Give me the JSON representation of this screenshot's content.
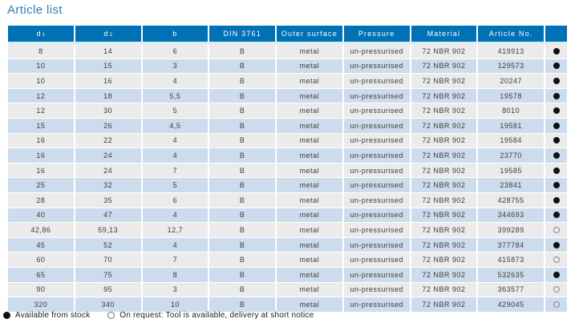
{
  "title": "Article list",
  "colors": {
    "title_text": "#2b7fb8",
    "header_bg": "#0071b5",
    "header_text": "#ffffff",
    "header_underline": "#d8f0f3",
    "row_odd_bg": "#ebebeb",
    "row_even_bg": "#ccdcec",
    "body_text": "#3c3c3c",
    "dot_filled": "#111111",
    "dot_open_border": "#8a8a8a"
  },
  "table": {
    "headers": [
      {
        "text": "d",
        "sub": "1"
      },
      {
        "text": "d",
        "sub": "2"
      },
      {
        "text": "b",
        "sub": ""
      },
      {
        "text": "DIN 3761",
        "sub": ""
      },
      {
        "text": "Outer surface",
        "sub": ""
      },
      {
        "text": "Pressure",
        "sub": ""
      },
      {
        "text": "Material",
        "sub": ""
      },
      {
        "text": "Article No.",
        "sub": ""
      },
      {
        "text": "",
        "sub": ""
      }
    ],
    "rows": [
      {
        "d1": "8",
        "d2": "14",
        "b": "6",
        "din": "B",
        "outer": "metal",
        "pressure": "un-pressurised",
        "material": "72 NBR 902",
        "article": "419913",
        "avail": "stock"
      },
      {
        "d1": "10",
        "d2": "15",
        "b": "3",
        "din": "B",
        "outer": "metal",
        "pressure": "un-pressurised",
        "material": "72 NBR 902",
        "article": "129573",
        "avail": "stock"
      },
      {
        "d1": "10",
        "d2": "16",
        "b": "4",
        "din": "B",
        "outer": "metal",
        "pressure": "un-pressurised",
        "material": "72 NBR 902",
        "article": "20247",
        "avail": "stock"
      },
      {
        "d1": "12",
        "d2": "18",
        "b": "5,5",
        "din": "B",
        "outer": "metal",
        "pressure": "un-pressurised",
        "material": "72 NBR 902",
        "article": "19578",
        "avail": "stock"
      },
      {
        "d1": "12",
        "d2": "30",
        "b": "5",
        "din": "B",
        "outer": "metal",
        "pressure": "un-pressurised",
        "material": "72 NBR 902",
        "article": "8010",
        "avail": "stock"
      },
      {
        "d1": "15",
        "d2": "26",
        "b": "4,5",
        "din": "B",
        "outer": "metal",
        "pressure": "un-pressurised",
        "material": "72 NBR 902",
        "article": "19581",
        "avail": "stock"
      },
      {
        "d1": "16",
        "d2": "22",
        "b": "4",
        "din": "B",
        "outer": "metal",
        "pressure": "un-pressurised",
        "material": "72 NBR 902",
        "article": "19584",
        "avail": "stock"
      },
      {
        "d1": "16",
        "d2": "24",
        "b": "4",
        "din": "B",
        "outer": "metal",
        "pressure": "un-pressurised",
        "material": "72 NBR 902",
        "article": "23770",
        "avail": "stock"
      },
      {
        "d1": "16",
        "d2": "24",
        "b": "7",
        "din": "B",
        "outer": "metal",
        "pressure": "un-pressurised",
        "material": "72 NBR 902",
        "article": "19585",
        "avail": "stock"
      },
      {
        "d1": "25",
        "d2": "32",
        "b": "5",
        "din": "B",
        "outer": "metal",
        "pressure": "un-pressurised",
        "material": "72 NBR 902",
        "article": "23841",
        "avail": "stock"
      },
      {
        "d1": "28",
        "d2": "35",
        "b": "6",
        "din": "B",
        "outer": "metal",
        "pressure": "un-pressurised",
        "material": "72 NBR 902",
        "article": "428755",
        "avail": "stock"
      },
      {
        "d1": "40",
        "d2": "47",
        "b": "4",
        "din": "B",
        "outer": "metal",
        "pressure": "un-pressurised",
        "material": "72 NBR 902",
        "article": "344693",
        "avail": "stock"
      },
      {
        "d1": "42,86",
        "d2": "59,13",
        "b": "12,7",
        "din": "B",
        "outer": "metal",
        "pressure": "un-pressurised",
        "material": "72 NBR 902",
        "article": "399289",
        "avail": "request"
      },
      {
        "d1": "45",
        "d2": "52",
        "b": "4",
        "din": "B",
        "outer": "metal",
        "pressure": "un-pressurised",
        "material": "72 NBR 902",
        "article": "377784",
        "avail": "stock"
      },
      {
        "d1": "60",
        "d2": "70",
        "b": "7",
        "din": "B",
        "outer": "metal",
        "pressure": "un-pressurised",
        "material": "72 NBR 902",
        "article": "415873",
        "avail": "request"
      },
      {
        "d1": "65",
        "d2": "75",
        "b": "8",
        "din": "B",
        "outer": "metal",
        "pressure": "un-pressurised",
        "material": "72 NBR 902",
        "article": "532635",
        "avail": "stock"
      },
      {
        "d1": "90",
        "d2": "95",
        "b": "3",
        "din": "B",
        "outer": "metal",
        "pressure": "un-pressurised",
        "material": "72 NBR 902",
        "article": "363577",
        "avail": "request"
      },
      {
        "d1": "320",
        "d2": "340",
        "b": "10",
        "din": "B",
        "outer": "metal",
        "pressure": "un-pressurised",
        "material": "72 NBR 902",
        "article": "429045",
        "avail": "request"
      }
    ]
  },
  "legend": {
    "stock": "Available from stock",
    "request": "On request: Tool is available, delivery at short notice"
  }
}
